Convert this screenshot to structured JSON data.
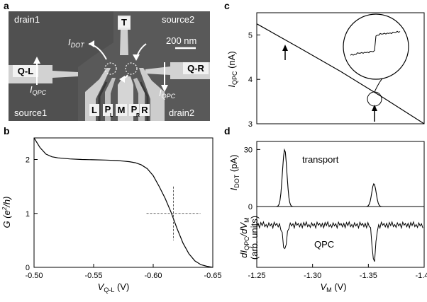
{
  "panels": {
    "a": "a",
    "b": "b",
    "c": "c",
    "d": "d"
  },
  "sem": {
    "corner_labels": {
      "drain1": "drain1",
      "source2": "source2",
      "source1": "source1",
      "drain2": "drain2"
    },
    "scale_bar": "200 nm",
    "gates": {
      "T": "T",
      "QL": "Q-L",
      "QR": "Q-R",
      "L": "L",
      "PL": "P",
      "PL_sub": "L",
      "M": "M",
      "PR": "P",
      "PR_sub": "R",
      "R": "R"
    },
    "currents": {
      "I": "I",
      "dot_sub": "DOT",
      "qpc_sub": "QPC"
    },
    "colors": {
      "background": "#5b5b5b",
      "gate": "#cfcfcf",
      "dark_gate": "#3a3a3a"
    }
  },
  "chart_data": [
    {
      "panel": "b",
      "type": "line",
      "xlabel": "V_Q-L (V)",
      "ylabel": "G (e^2/h)",
      "xlim": [
        -0.5,
        -0.65
      ],
      "ylim": [
        0,
        2.4
      ],
      "xticks": [
        "-0.50",
        "-0.55",
        "-0.60",
        "-0.65"
      ],
      "yticks": [
        "0",
        "1",
        "2"
      ],
      "x": [
        -0.5,
        -0.505,
        -0.51,
        -0.515,
        -0.52,
        -0.53,
        -0.54,
        -0.55,
        -0.56,
        -0.57,
        -0.575,
        -0.58,
        -0.585,
        -0.59,
        -0.595,
        -0.6,
        -0.605,
        -0.61,
        -0.615,
        -0.62,
        -0.625,
        -0.63,
        -0.635,
        -0.64,
        -0.645,
        -0.65
      ],
      "y": [
        2.4,
        2.22,
        2.1,
        2.05,
        2.03,
        2.01,
        2.0,
        1.995,
        1.99,
        1.98,
        1.97,
        1.96,
        1.94,
        1.9,
        1.83,
        1.7,
        1.5,
        1.28,
        1.02,
        0.72,
        0.45,
        0.25,
        0.12,
        0.05,
        0.02,
        0.0
      ],
      "crosshair": {
        "x": -0.617,
        "y": 1.0
      }
    },
    {
      "panel": "c",
      "type": "line",
      "xlabel": "",
      "ylabel": "I_QPC (nA)",
      "ylim": [
        3,
        5.5
      ],
      "yticks": [
        "3",
        "4",
        "5"
      ],
      "x_fraction": [
        0.0,
        0.25,
        0.5,
        0.75,
        1.0
      ],
      "y": [
        5.25,
        4.72,
        4.18,
        3.6,
        3.0
      ]
    },
    {
      "panel": "d",
      "type": "line",
      "xlabel": "V_M (V)",
      "xlim": [
        -1.25,
        -1.4
      ],
      "xticks": [
        "-1.25",
        "-1.30",
        "-1.35",
        "-1.40"
      ],
      "series": [
        {
          "name": "transport",
          "ylabel": "I_DOT (pA)",
          "yticks": [
            "0",
            "30"
          ],
          "ylim": [
            0,
            32
          ],
          "peaks": [
            {
              "x": -1.275,
              "y": 30
            },
            {
              "x": -1.355,
              "y": 12
            }
          ]
        },
        {
          "name": "QPC",
          "ylabel": "dI_QPC/dV_M (arb. units)",
          "dips": [
            -1.275,
            -1.355
          ]
        }
      ]
    }
  ]
}
